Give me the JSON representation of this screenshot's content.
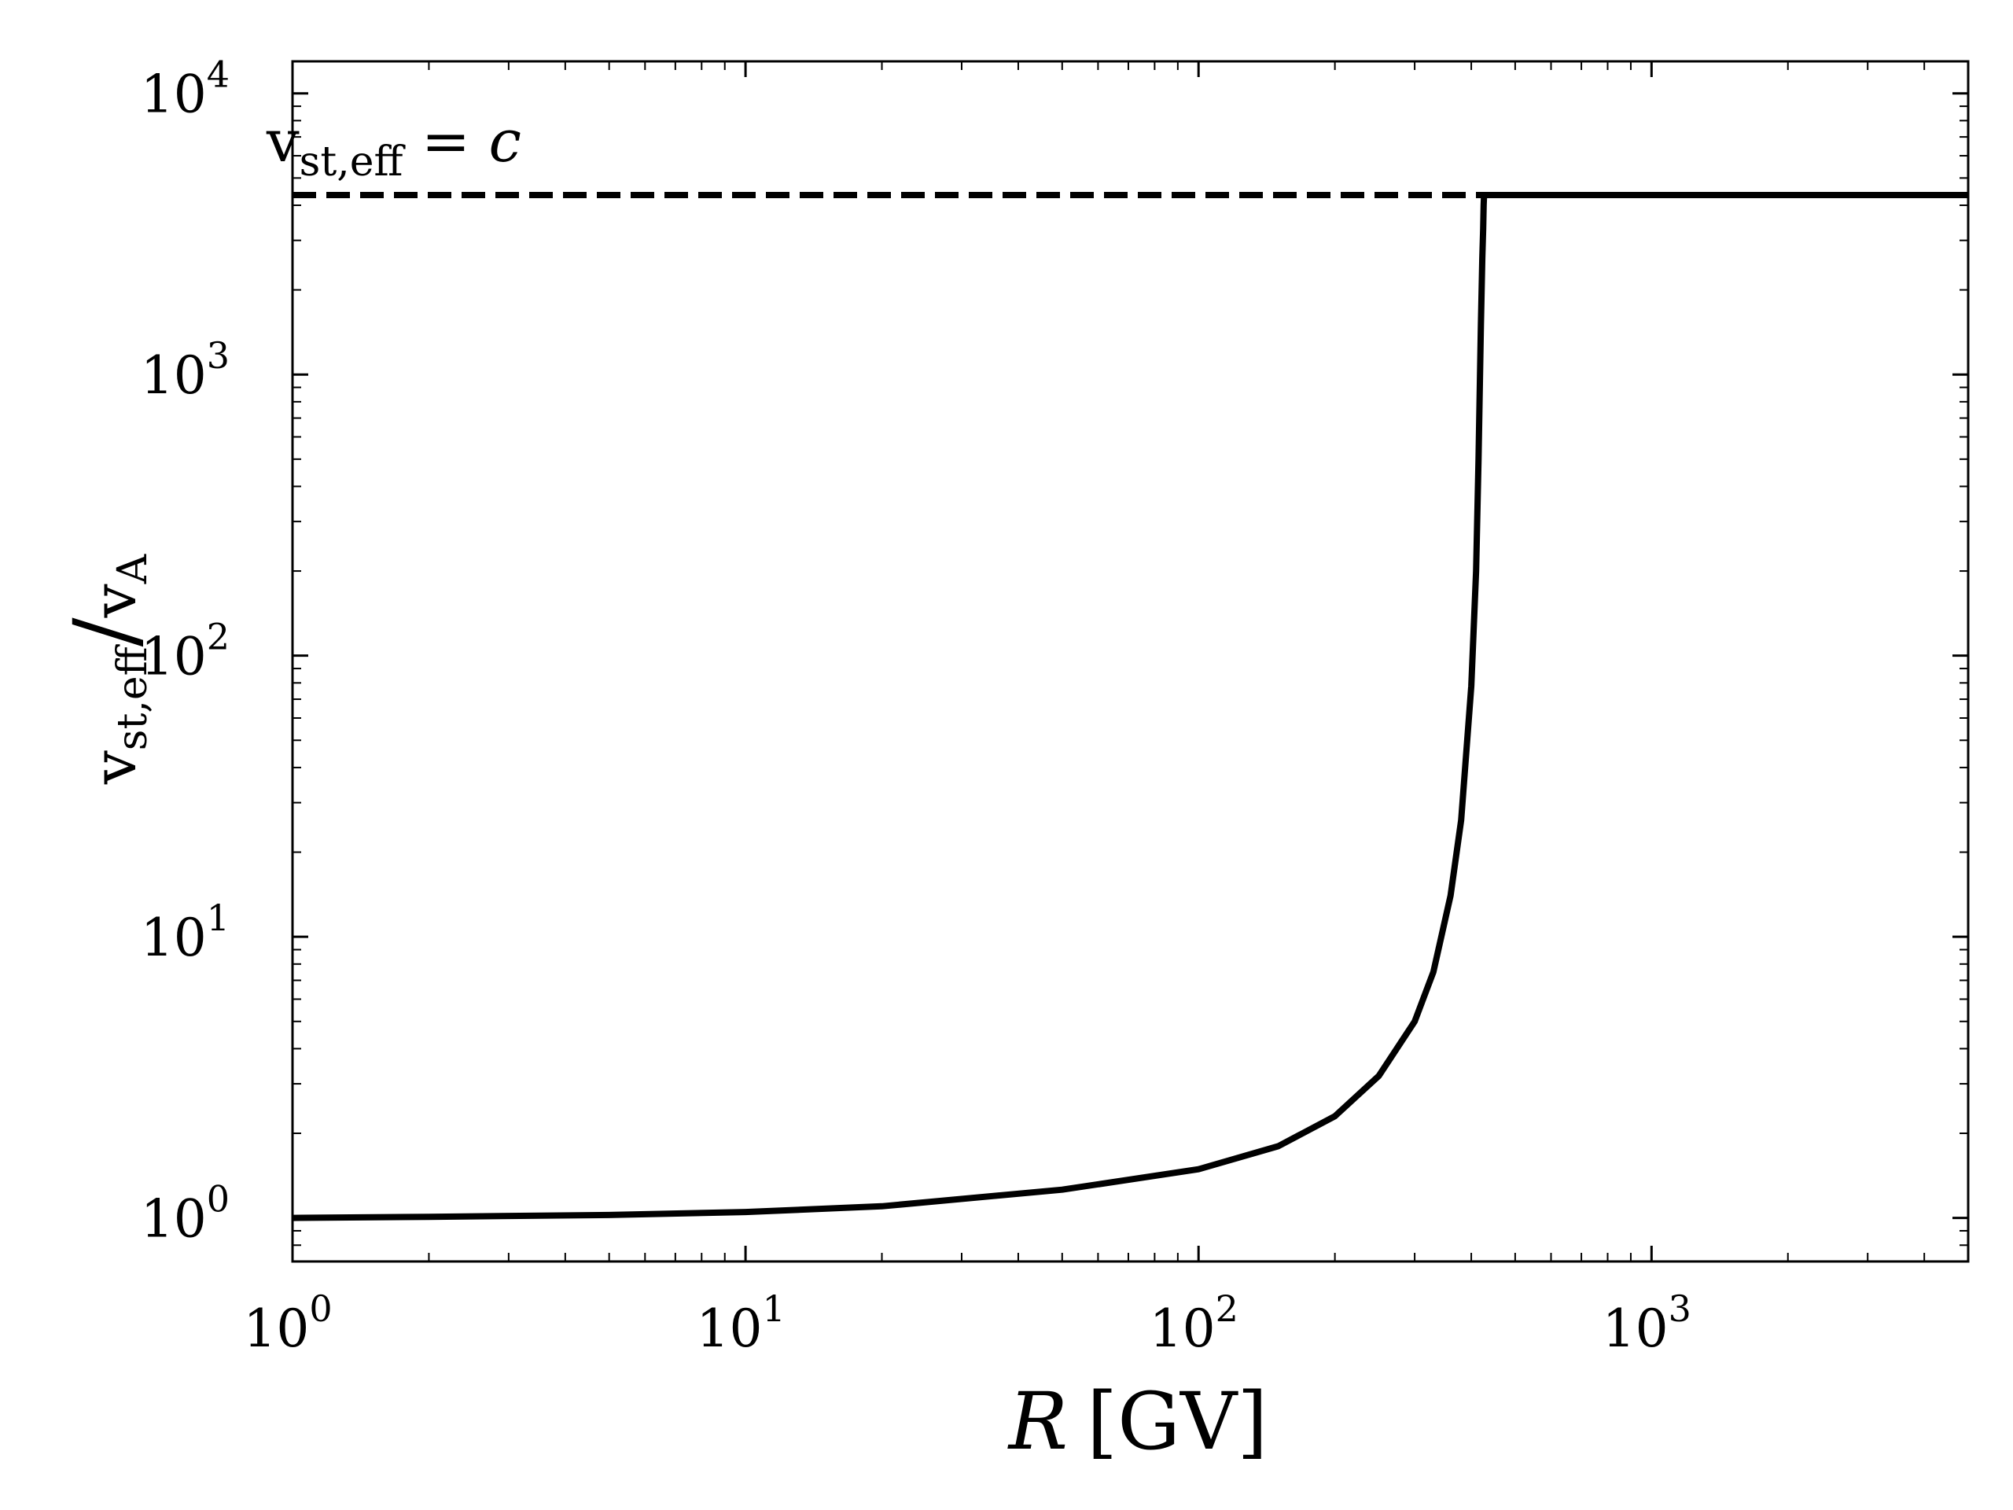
{
  "chart_data": {
    "type": "line",
    "title": "",
    "xlabel": {
      "var": "R",
      "unit": "[GV]"
    },
    "ylabel": {
      "base": "v",
      "sub": "st,eff",
      "slash": "/",
      "denom_base": "v",
      "denom_sub": "A"
    },
    "xscale": "log",
    "yscale": "log",
    "xlim": [
      1,
      5000
    ],
    "ylim": [
      0.7,
      13000
    ],
    "grid": false,
    "x_ticks": [
      {
        "value": 1,
        "base": "10",
        "exp": "0"
      },
      {
        "value": 10,
        "base": "10",
        "exp": "1"
      },
      {
        "value": 100,
        "base": "10",
        "exp": "2"
      },
      {
        "value": 1000,
        "base": "10",
        "exp": "3"
      }
    ],
    "y_ticks": [
      {
        "value": 1,
        "base": "10",
        "exp": "0"
      },
      {
        "value": 10,
        "base": "10",
        "exp": "1"
      },
      {
        "value": 100,
        "base": "10",
        "exp": "2"
      },
      {
        "value": 1000,
        "base": "10",
        "exp": "3"
      },
      {
        "value": 10000,
        "base": "10",
        "exp": "4"
      }
    ],
    "series": [
      {
        "name": "vst,eff/vA",
        "style": "solid",
        "color": "#000000",
        "x": [
          1,
          2,
          5,
          10,
          20,
          50,
          100,
          150,
          200,
          250,
          300,
          330,
          360,
          380,
          400,
          410,
          415,
          420,
          423,
          425,
          426,
          426.5,
          427,
          1000,
          5000
        ],
        "y": [
          1.0,
          1.009,
          1.024,
          1.05,
          1.1,
          1.26,
          1.49,
          1.8,
          2.3,
          3.2,
          5.0,
          7.5,
          14,
          26,
          78,
          200,
          500,
          1500,
          2600,
          3300,
          4000,
          4200,
          4350,
          4350,
          4350
        ]
      },
      {
        "name": "vst,eff = c",
        "style": "dashed",
        "color": "#000000",
        "x": [
          1,
          427
        ],
        "y": [
          4350,
          4350
        ]
      }
    ],
    "annotations": [
      {
        "base": "v",
        "sub": "st,eff",
        "rest": " = ",
        "var": "c",
        "at": {
          "x": 4.0,
          "y": 7000
        }
      }
    ]
  }
}
